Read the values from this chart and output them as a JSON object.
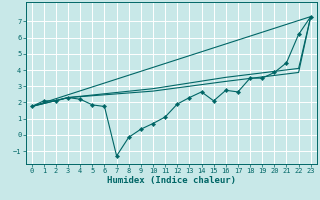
{
  "xlabel": "Humidex (Indice chaleur)",
  "background_color": "#c8e8e8",
  "grid_color": "#ffffff",
  "line_color": "#006666",
  "xlim": [
    -0.5,
    23.5
  ],
  "ylim": [
    -1.8,
    8.2
  ],
  "xticks": [
    0,
    1,
    2,
    3,
    4,
    5,
    6,
    7,
    8,
    9,
    10,
    11,
    12,
    13,
    14,
    15,
    16,
    17,
    18,
    19,
    20,
    21,
    22,
    23
  ],
  "yticks": [
    -1,
    0,
    1,
    2,
    3,
    4,
    5,
    6,
    7
  ],
  "line1_x": [
    0,
    1,
    2,
    3,
    4,
    5,
    6,
    7,
    8,
    9,
    10,
    11,
    12,
    13,
    14,
    15,
    16,
    17,
    18,
    19,
    20,
    21,
    22,
    23
  ],
  "line1_y": [
    1.75,
    2.1,
    2.1,
    2.3,
    2.2,
    1.85,
    1.75,
    -1.3,
    -0.15,
    0.35,
    0.7,
    1.1,
    1.9,
    2.3,
    2.65,
    2.1,
    2.75,
    2.65,
    3.5,
    3.5,
    3.85,
    4.45,
    6.2,
    7.3
  ],
  "line2_x": [
    0,
    23
  ],
  "line2_y": [
    1.75,
    7.3
  ],
  "line3_x": [
    0,
    3,
    10,
    16,
    22,
    23
  ],
  "line3_y": [
    1.75,
    2.3,
    2.85,
    3.55,
    4.1,
    7.3
  ],
  "line4_x": [
    0,
    3,
    10,
    16,
    22,
    23
  ],
  "line4_y": [
    1.75,
    2.3,
    2.7,
    3.3,
    3.85,
    7.3
  ]
}
